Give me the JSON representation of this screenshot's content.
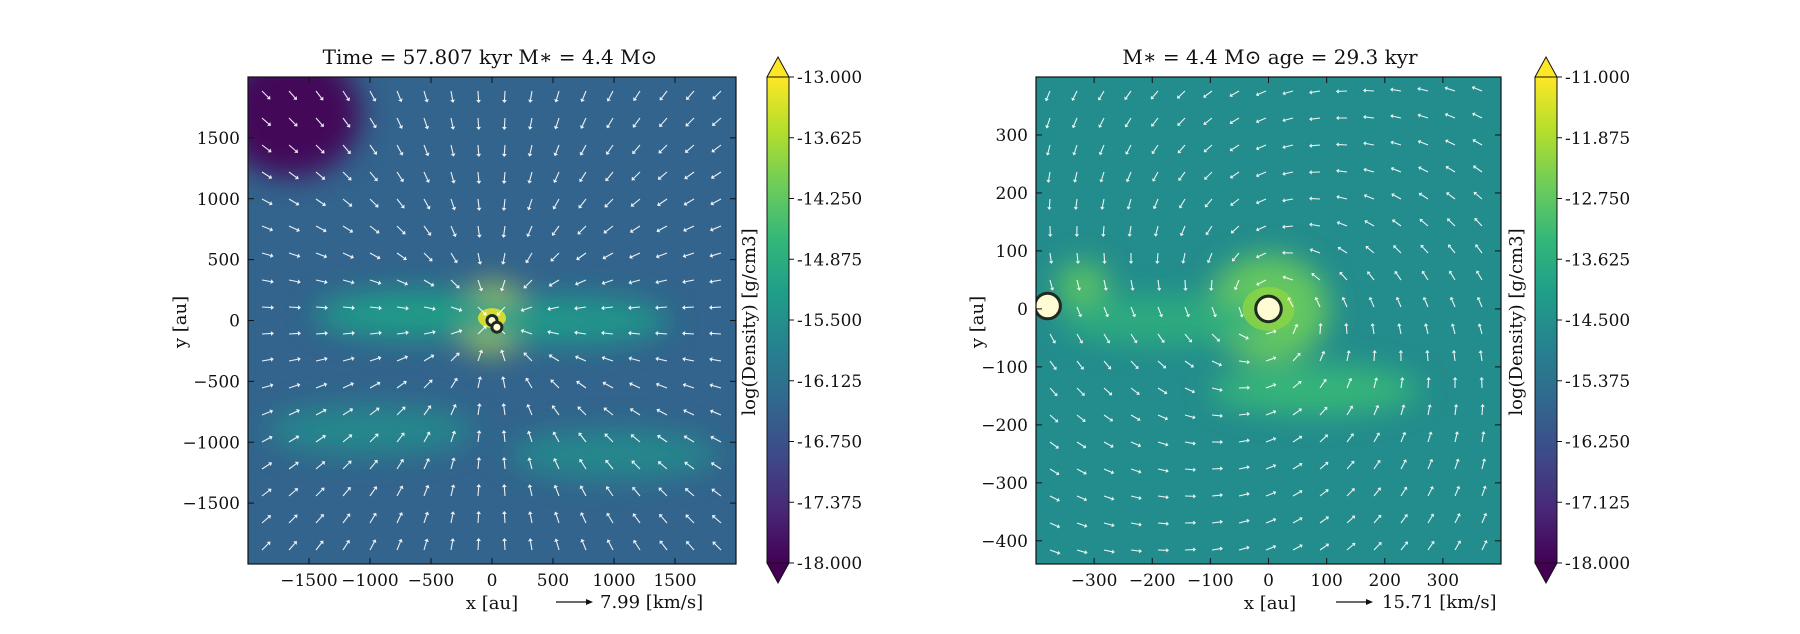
{
  "chart_data": [
    {
      "type": "heatmap",
      "title": "Time = 57.807 kyr    M$_*$ = 4.4 M$_\\odot$",
      "title_display": "Time = 57.807 kyr    M∗ = 4.4 M⊙",
      "xlabel": "x [au]",
      "ylabel": "y [au]",
      "xlim": [
        -2000,
        2000
      ],
      "ylim": [
        -2000,
        2000
      ],
      "xticks": [
        -1500,
        -1000,
        -500,
        0,
        500,
        1000,
        1500
      ],
      "yticks": [
        -1500,
        -1000,
        -500,
        0,
        500,
        1000,
        1500
      ],
      "velocity_key": "7.99 [km/s]",
      "colorbar": {
        "label": "log(Density) [g/cm3]",
        "range": [
          -18.0,
          -13.0
        ],
        "ticks": [
          "-13.000",
          "-13.625",
          "-14.250",
          "-14.875",
          "-15.500",
          "-16.125",
          "-16.750",
          "-17.375",
          "-18.000"
        ],
        "colormap": "viridis",
        "extend": "both"
      },
      "background_level": -16.4,
      "density_features": [
        {
          "feature": "central disk",
          "x": 0,
          "y": 20,
          "peak": -13.4
        },
        {
          "feature": "filament west",
          "x": -600,
          "y": 50,
          "peak": -15.2
        },
        {
          "feature": "filament east",
          "x": 600,
          "y": 0,
          "peak": -15.3
        },
        {
          "feature": "arc south-west",
          "x": -1000,
          "y": -900,
          "peak": -15.6
        },
        {
          "feature": "arc south-east",
          "x": 1000,
          "y": -1100,
          "peak": -15.6
        },
        {
          "feature": "low-density cavity north-west",
          "x": -1650,
          "y": 1700,
          "peak": -18.0
        }
      ],
      "sinks": [
        {
          "x": 0,
          "y": 0,
          "r": 40
        },
        {
          "x": 40,
          "y": -55,
          "r": 40
        }
      ]
    },
    {
      "type": "heatmap",
      "title": "M$_*$ = 4.4 M$_\\odot$        age = 29.3 kyr",
      "title_display": "M∗ = 4.4 M⊙        age = 29.3 kyr",
      "xlabel": "x [au]",
      "ylabel": "y [au]",
      "xlim": [
        -400,
        400
      ],
      "ylim": [
        -440,
        400
      ],
      "xticks": [
        -300,
        -200,
        -100,
        0,
        100,
        200,
        300
      ],
      "yticks": [
        -400,
        -300,
        -200,
        -100,
        0,
        100,
        200,
        300
      ],
      "velocity_key": "15.71 [km/s]",
      "colorbar": {
        "label": "log(Density) [g/cm3]",
        "range": [
          -18.0,
          -11.0
        ],
        "ticks": [
          "-11.000",
          "-11.875",
          "-12.750",
          "-13.625",
          "-14.500",
          "-15.375",
          "-16.250",
          "-17.125",
          "-18.000"
        ],
        "colormap": "viridis",
        "extend": "both"
      },
      "background_level": -14.6,
      "density_features": [
        {
          "feature": "central disk",
          "x": 0,
          "y": 0,
          "peak": -12.6
        },
        {
          "feature": "spiral arm south",
          "x": 80,
          "y": -140,
          "peak": -13.3
        },
        {
          "feature": "companion clump",
          "x": -320,
          "y": 40,
          "peak": -12.8
        },
        {
          "feature": "bridge",
          "x": -180,
          "y": -20,
          "peak": -13.6
        }
      ],
      "sinks": [
        {
          "x": 0,
          "y": 0,
          "r": 22
        },
        {
          "x": -380,
          "y": 5,
          "r": 22
        }
      ]
    }
  ]
}
